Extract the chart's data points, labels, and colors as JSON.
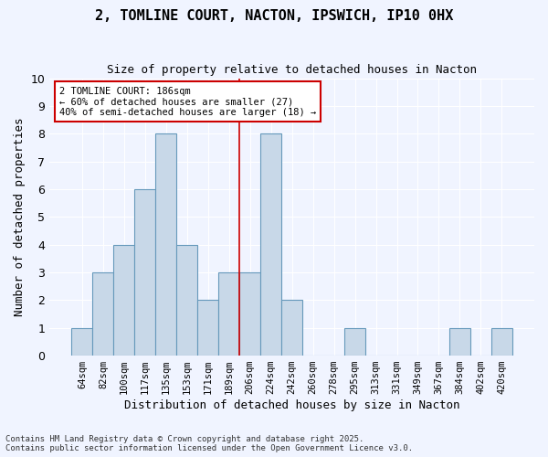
{
  "title_line1": "2, TOMLINE COURT, NACTON, IPSWICH, IP10 0HX",
  "title_line2": "Size of property relative to detached houses in Nacton",
  "xlabel": "Distribution of detached houses by size in Nacton",
  "ylabel": "Number of detached properties",
  "categories": [
    "64sqm",
    "82sqm",
    "100sqm",
    "117sqm",
    "135sqm",
    "153sqm",
    "171sqm",
    "189sqm",
    "206sqm",
    "224sqm",
    "242sqm",
    "260sqm",
    "278sqm",
    "295sqm",
    "313sqm",
    "331sqm",
    "349sqm",
    "367sqm",
    "384sqm",
    "402sqm",
    "420sqm"
  ],
  "values": [
    1,
    3,
    4,
    6,
    8,
    4,
    2,
    3,
    3,
    8,
    2,
    0,
    0,
    1,
    0,
    0,
    0,
    0,
    1,
    0,
    1
  ],
  "bar_color": "#c8d8e8",
  "bar_edge_color": "#6699bb",
  "vline_x": 8,
  "vline_color": "#cc0000",
  "ylim": [
    0,
    10
  ],
  "yticks": [
    0,
    1,
    2,
    3,
    4,
    5,
    6,
    7,
    8,
    9,
    10
  ],
  "annotation_text": "2 TOMLINE COURT: 186sqm\n← 60% of detached houses are smaller (27)\n40% of semi-detached houses are larger (18) →",
  "annotation_box_color": "#ffffff",
  "annotation_box_edge": "#cc0000",
  "background_color": "#f0f4ff",
  "grid_color": "#ffffff",
  "footer_line1": "Contains HM Land Registry data © Crown copyright and database right 2025.",
  "footer_line2": "Contains public sector information licensed under the Open Government Licence v3.0."
}
